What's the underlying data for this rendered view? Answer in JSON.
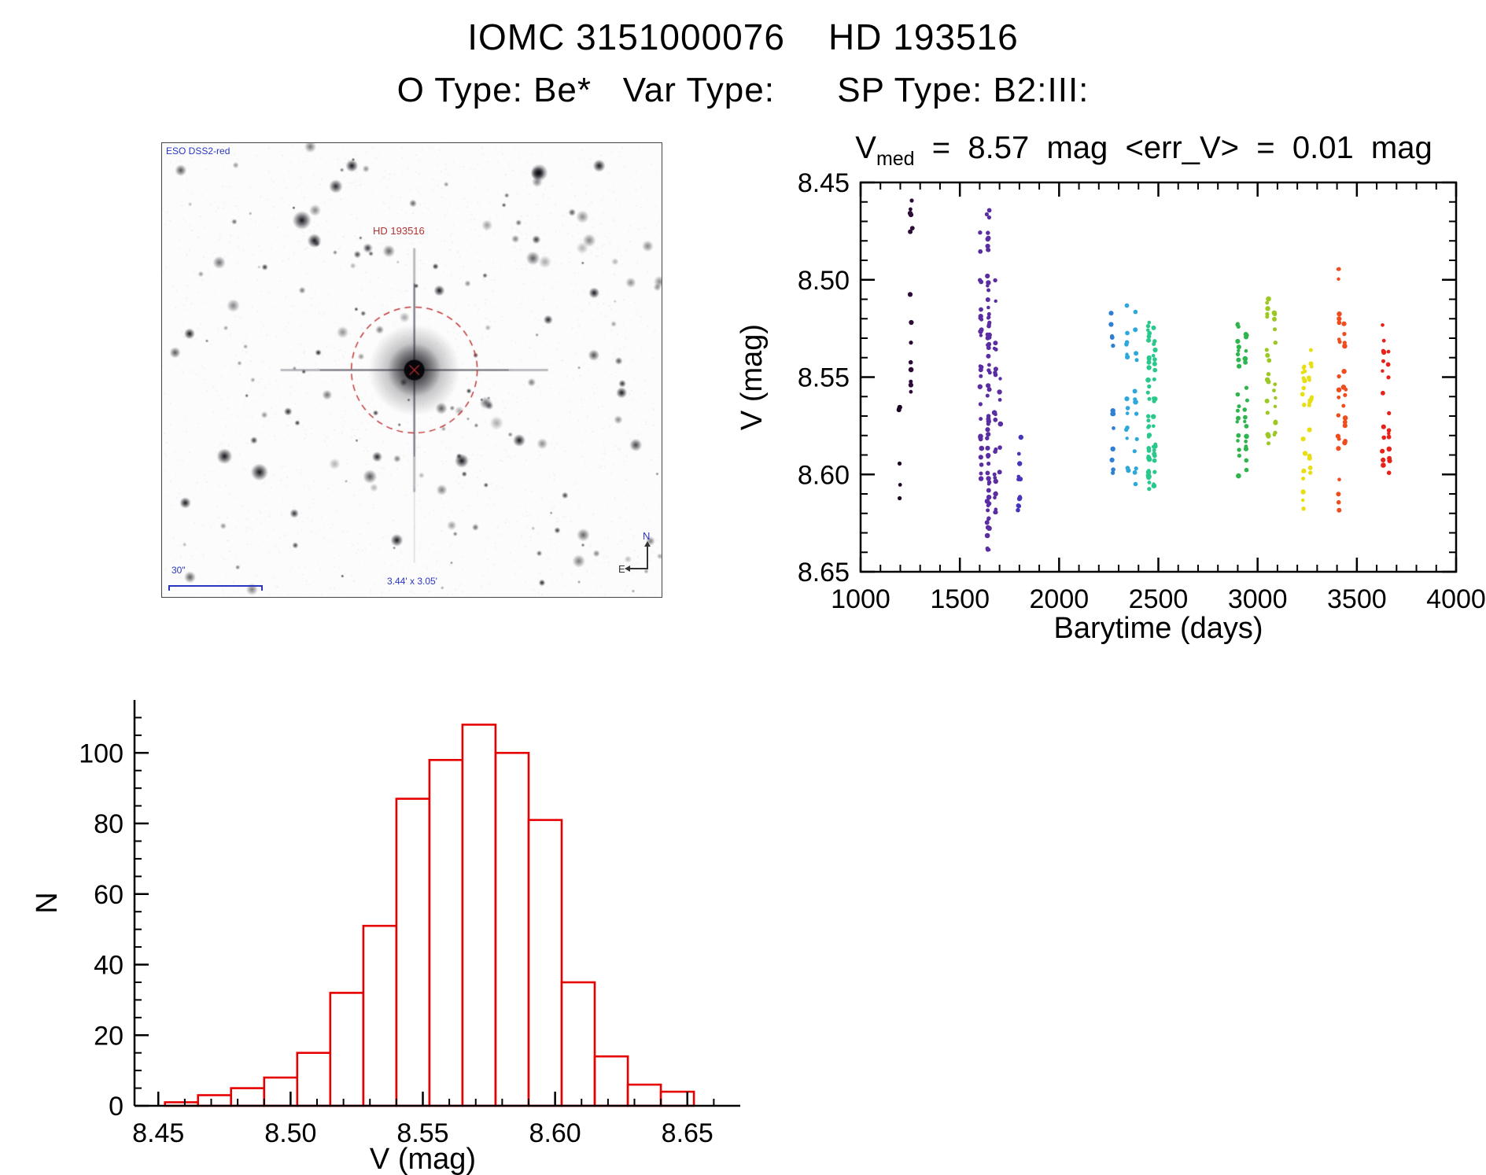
{
  "page": {
    "title": "IOMC 3151000076    HD 193516",
    "subtitle": "O Type: Be*   Var Type:      SP Type: B2:III:"
  },
  "finder_chart": {
    "survey_label": "ESO DSS2-red",
    "target_label": "HD 193516",
    "scale_label": "30\"",
    "fov_label": "3.44' x 3.05'",
    "compass_north": "N",
    "compass_east": "E",
    "annotation_color": "#2a35c0",
    "target_color": "#b23333"
  },
  "chart_data": [
    {
      "type": "scatter",
      "title": {
        "var": "V",
        "sub": "med",
        "rest": "  =  8.57  mag  <err_V>  =  0.01  mag"
      },
      "xlabel": "Barytime (days)",
      "ylabel": "V (mag)",
      "xlim": [
        1000,
        4000
      ],
      "ylim": [
        8.65,
        8.45
      ],
      "y_axis_inverted": true,
      "xticks": [
        1000,
        1500,
        2000,
        2500,
        3000,
        3500,
        4000
      ],
      "yticks": [
        8.45,
        8.5,
        8.55,
        8.6,
        8.65
      ],
      "x_minor_step": 100,
      "y_minor_step": 0.01,
      "legend": "none",
      "grid": false,
      "point_color_scheme": "rainbow-by-time",
      "clusters": [
        {
          "t": 1196,
          "spread": 6,
          "color": "#1c0522",
          "groups": [
            {
              "lo": 8.565,
              "hi": 8.616,
              "n": 6
            }
          ]
        },
        {
          "t": 1254,
          "spread": 9,
          "color": "#2d0b38",
          "groups": [
            {
              "lo": 8.449,
              "hi": 8.483,
              "n": 6
            },
            {
              "lo": 8.505,
              "hi": 8.512,
              "n": 1
            },
            {
              "lo": 8.52,
              "hi": 8.562,
              "n": 7
            }
          ]
        },
        {
          "t": 1606,
          "spread": 7,
          "color": "#5b2da2",
          "groups": [
            {
              "lo": 8.472,
              "hi": 8.502,
              "n": 4
            },
            {
              "lo": 8.515,
              "hi": 8.605,
              "n": 22
            }
          ]
        },
        {
          "t": 1643,
          "spread": 9,
          "color": "#5b2da2",
          "groups": [
            {
              "lo": 8.449,
              "hi": 8.5,
              "n": 10
            },
            {
              "lo": 8.5,
              "hi": 8.565,
              "n": 26
            },
            {
              "lo": 8.565,
              "hi": 8.625,
              "n": 24
            },
            {
              "lo": 8.625,
              "hi": 8.645,
              "n": 6
            }
          ]
        },
        {
          "t": 1679,
          "spread": 7,
          "color": "#5b2da2",
          "groups": [
            {
              "lo": 8.492,
              "hi": 8.62,
              "n": 22
            }
          ]
        },
        {
          "t": 1703,
          "spread": 4,
          "color": "#5b2da2",
          "groups": [
            {
              "lo": 8.548,
              "hi": 8.602,
              "n": 6
            }
          ]
        },
        {
          "t": 1801,
          "spread": 10,
          "color": "#4436bb",
          "groups": [
            {
              "lo": 8.576,
              "hi": 8.622,
              "n": 12
            }
          ]
        },
        {
          "t": 2270,
          "spread": 9,
          "color": "#2f7fd2",
          "groups": [
            {
              "lo": 8.506,
              "hi": 8.534,
              "n": 5
            },
            {
              "lo": 8.552,
              "hi": 8.6,
              "n": 8
            }
          ]
        },
        {
          "t": 2344,
          "spread": 8,
          "color": "#2ea8da",
          "groups": [
            {
              "lo": 8.502,
              "hi": 8.6,
              "n": 14
            }
          ]
        },
        {
          "t": 2384,
          "spread": 8,
          "color": "#2ea8da",
          "groups": [
            {
              "lo": 8.515,
              "hi": 8.605,
              "n": 14
            }
          ]
        },
        {
          "t": 2452,
          "spread": 6,
          "color": "#29c98c",
          "groups": [
            {
              "lo": 8.52,
              "hi": 8.616,
              "n": 36
            }
          ]
        },
        {
          "t": 2480,
          "spread": 7,
          "color": "#29c98c",
          "groups": [
            {
              "lo": 8.524,
              "hi": 8.606,
              "n": 24
            }
          ]
        },
        {
          "t": 2902,
          "spread": 8,
          "color": "#2eb54d",
          "groups": [
            {
              "lo": 8.52,
              "hi": 8.612,
              "n": 20
            }
          ]
        },
        {
          "t": 2942,
          "spread": 8,
          "color": "#2eb54d",
          "groups": [
            {
              "lo": 8.524,
              "hi": 8.6,
              "n": 18
            }
          ]
        },
        {
          "t": 3052,
          "spread": 8,
          "color": "#9cc822",
          "groups": [
            {
              "lo": 8.508,
              "hi": 8.585,
              "n": 16
            }
          ]
        },
        {
          "t": 3088,
          "spread": 8,
          "color": "#9cc822",
          "groups": [
            {
              "lo": 8.515,
              "hi": 8.58,
              "n": 13
            }
          ]
        },
        {
          "t": 3232,
          "spread": 8,
          "color": "#e8de14",
          "groups": [
            {
              "lo": 8.532,
              "hi": 8.624,
              "n": 18
            }
          ]
        },
        {
          "t": 3266,
          "spread": 8,
          "color": "#e8de14",
          "groups": [
            {
              "lo": 8.535,
              "hi": 8.6,
              "n": 15
            }
          ]
        },
        {
          "t": 3410,
          "spread": 7,
          "color": "#ef4d1e",
          "groups": [
            {
              "lo": 8.492,
              "hi": 8.624,
              "n": 20
            }
          ]
        },
        {
          "t": 3438,
          "spread": 7,
          "color": "#ef4d1e",
          "groups": [
            {
              "lo": 8.52,
              "hi": 8.59,
              "n": 14
            }
          ]
        },
        {
          "t": 3632,
          "spread": 7,
          "color": "#e7221b",
          "groups": [
            {
              "lo": 8.522,
              "hi": 8.606,
              "n": 13
            }
          ]
        },
        {
          "t": 3662,
          "spread": 7,
          "color": "#e7221b",
          "groups": [
            {
              "lo": 8.53,
              "hi": 8.6,
              "n": 11
            }
          ]
        }
      ]
    },
    {
      "type": "histogram",
      "xlabel": "V (mag)",
      "ylabel": "N",
      "xlim": [
        8.441,
        8.67
      ],
      "ylim": [
        0,
        115
      ],
      "xticks": [
        8.45,
        8.5,
        8.55,
        8.6,
        8.65
      ],
      "yticks": [
        0,
        20,
        40,
        60,
        80,
        100
      ],
      "x_minor_step": 0.01,
      "y_minor_step": 5,
      "bin_start": 8.4525,
      "bin_width": 0.0125,
      "counts": [
        1,
        3,
        5,
        8,
        15,
        32,
        51,
        87,
        98,
        108,
        100,
        81,
        35,
        14,
        6,
        4
      ],
      "bar_color": "#e60000",
      "bar_fill": "#ffffff",
      "grid": false
    }
  ]
}
